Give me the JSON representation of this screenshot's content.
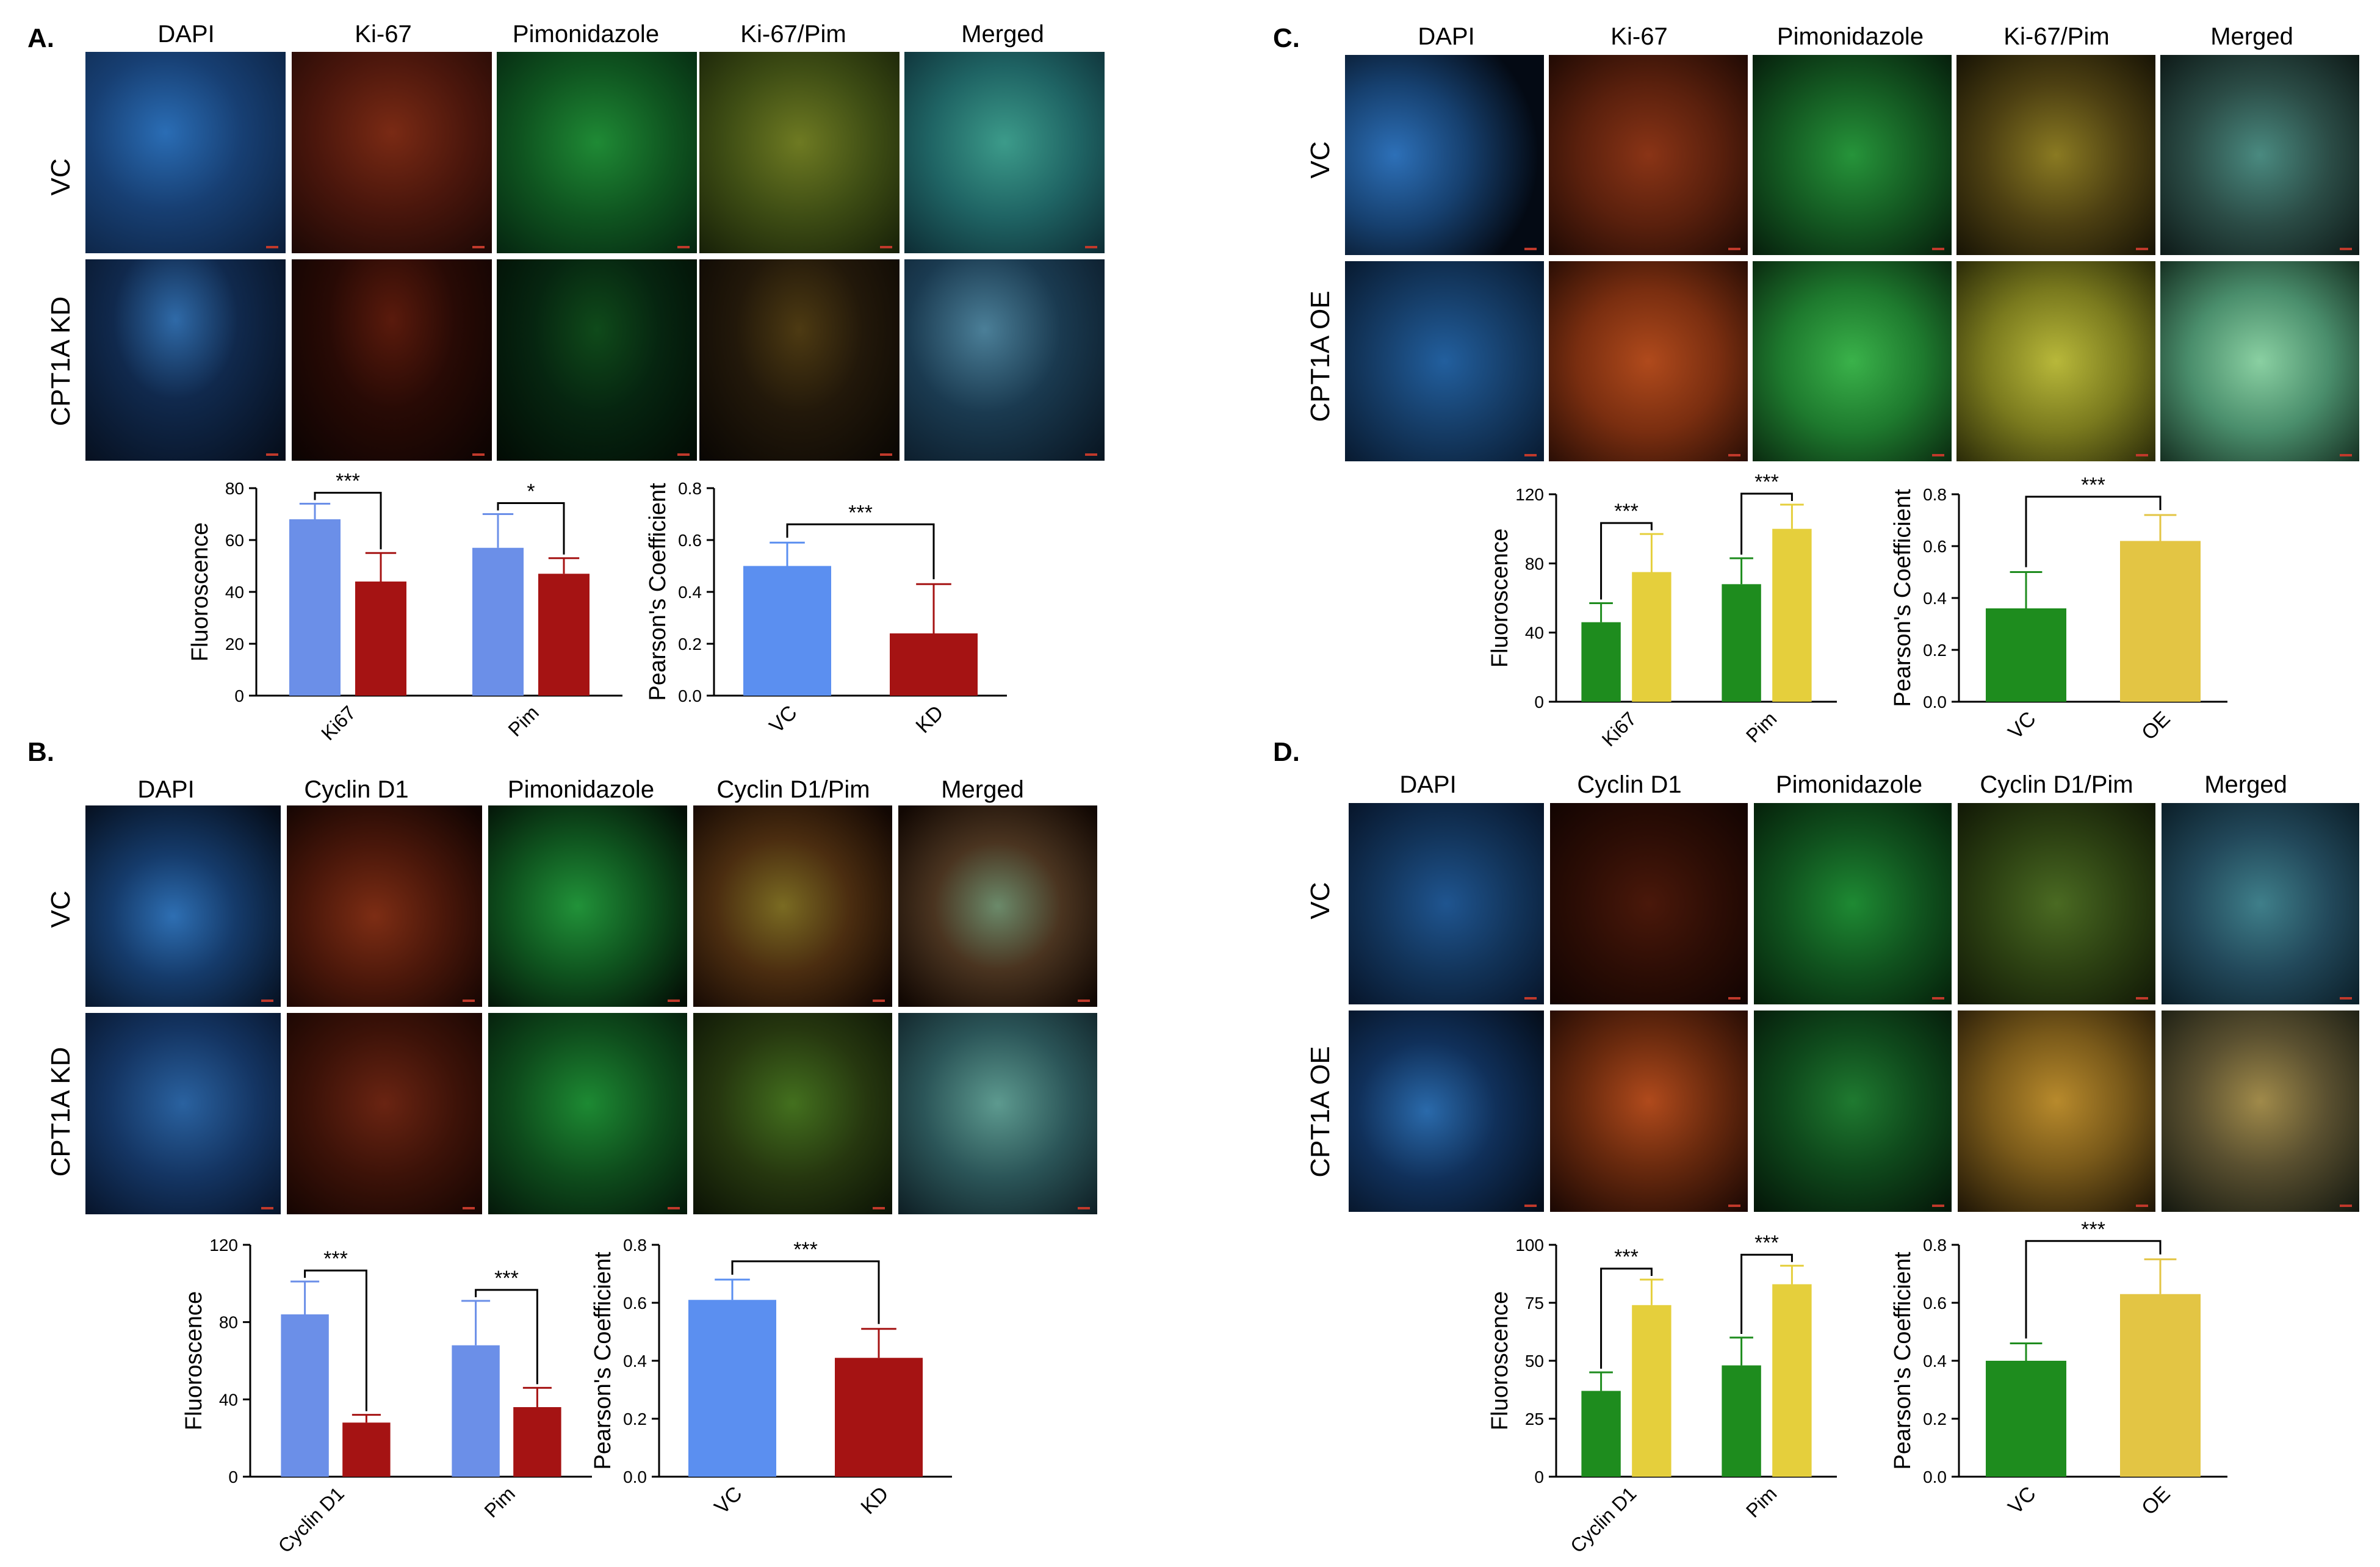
{
  "panels": {
    "A": {
      "letter": "A.",
      "columns": [
        "DAPI",
        "Ki-67",
        "Pimonidazole",
        "Ki-67/Pim",
        "Merged"
      ],
      "rows": [
        "VC",
        "CPT1A KD"
      ]
    },
    "B": {
      "letter": "B.",
      "columns": [
        "DAPI",
        "Cyclin D1",
        "Pimonidazole",
        "Cyclin D1/Pim",
        "Merged"
      ],
      "rows": [
        "VC",
        "CPT1A KD"
      ]
    },
    "C": {
      "letter": "C.",
      "columns": [
        "DAPI",
        "Ki-67",
        "Pimonidazole",
        "Ki-67/Pim",
        "Merged"
      ],
      "rows": [
        "VC",
        "CPT1A OE"
      ]
    },
    "D": {
      "letter": "D.",
      "columns": [
        "DAPI",
        "Cyclin D1",
        "Pimonidazole",
        "Cyclin D1/Pim",
        "Merged"
      ],
      "rows": [
        "VC",
        "CPT1A OE"
      ]
    }
  },
  "chart_data": [
    {
      "id": "A-fluor",
      "type": "bar",
      "ylabel": "Fluoroscence",
      "categories": [
        "Ki67",
        "Pim"
      ],
      "ylim": [
        0,
        80
      ],
      "yticks": [
        0,
        20,
        40,
        60,
        80
      ],
      "series": [
        {
          "values": [
            68,
            57
          ],
          "errors": [
            6,
            13
          ],
          "color": "#6b8fe8"
        },
        {
          "values": [
            44,
            47
          ],
          "errors": [
            11,
            6
          ],
          "color": "#a51313"
        }
      ],
      "significance": [
        "***",
        "*"
      ]
    },
    {
      "id": "A-pearson",
      "type": "bar",
      "ylabel": "Pearson's Coefficient",
      "categories": [
        "VC",
        "KD"
      ],
      "ylim": [
        0,
        0.8
      ],
      "yticks": [
        0.0,
        0.2,
        0.4,
        0.6,
        0.8
      ],
      "values": [
        0.5,
        0.24
      ],
      "errors": [
        0.09,
        0.19
      ],
      "colors": [
        "#5b8ff0",
        "#a51313"
      ],
      "significance": [
        "***"
      ]
    },
    {
      "id": "B-fluor",
      "type": "bar",
      "ylabel": "Fluoroscence",
      "categories": [
        "Cyclin D1",
        "Pim"
      ],
      "ylim": [
        0,
        120
      ],
      "yticks": [
        0,
        40,
        80,
        120
      ],
      "series": [
        {
          "values": [
            84,
            68
          ],
          "errors": [
            17,
            23
          ],
          "color": "#6b8fe8"
        },
        {
          "values": [
            28,
            36
          ],
          "errors": [
            4,
            10
          ],
          "color": "#a51313"
        }
      ],
      "significance": [
        "***",
        "***"
      ]
    },
    {
      "id": "B-pearson",
      "type": "bar",
      "ylabel": "Pearson's Coefficient",
      "categories": [
        "VC",
        "KD"
      ],
      "ylim": [
        0,
        0.8
      ],
      "yticks": [
        0.0,
        0.2,
        0.4,
        0.6,
        0.8
      ],
      "values": [
        0.61,
        0.41
      ],
      "errors": [
        0.07,
        0.1
      ],
      "colors": [
        "#5b8ff0",
        "#a51313"
      ],
      "significance": [
        "***"
      ]
    },
    {
      "id": "C-fluor",
      "type": "bar",
      "ylabel": "Fluoroscence",
      "categories": [
        "Ki67",
        "Pim"
      ],
      "ylim": [
        0,
        120
      ],
      "yticks": [
        0,
        40,
        80,
        120
      ],
      "series": [
        {
          "values": [
            46,
            68
          ],
          "errors": [
            11,
            15
          ],
          "color": "#1e8c1e"
        },
        {
          "values": [
            75,
            100
          ],
          "errors": [
            22,
            14
          ],
          "color": "#e5cf3c"
        }
      ],
      "significance": [
        "***",
        "***"
      ]
    },
    {
      "id": "C-pearson",
      "type": "bar",
      "ylabel": "Pearson's Coefficient",
      "categories": [
        "VC",
        "OE"
      ],
      "ylim": [
        0,
        0.8
      ],
      "yticks": [
        0.0,
        0.2,
        0.4,
        0.6,
        0.8
      ],
      "values": [
        0.36,
        0.62
      ],
      "errors": [
        0.14,
        0.1
      ],
      "colors": [
        "#1e8c1e",
        "#e3c544"
      ],
      "significance": [
        "***"
      ]
    },
    {
      "id": "D-fluor",
      "type": "bar",
      "ylabel": "Fluoroscence",
      "categories": [
        "Cyclin D1",
        "Pim"
      ],
      "ylim": [
        0,
        100
      ],
      "yticks": [
        0,
        25,
        50,
        75,
        100
      ],
      "series": [
        {
          "values": [
            37,
            48
          ],
          "errors": [
            8,
            12
          ],
          "color": "#1e8c1e"
        },
        {
          "values": [
            74,
            83
          ],
          "errors": [
            11,
            8
          ],
          "color": "#e5cf3c"
        }
      ],
      "significance": [
        "***",
        "***"
      ]
    },
    {
      "id": "D-pearson",
      "type": "bar",
      "ylabel": "Pearson's Coefficient",
      "categories": [
        "VC",
        "OE"
      ],
      "ylim": [
        0,
        0.8
      ],
      "yticks": [
        0.0,
        0.2,
        0.4,
        0.6,
        0.8
      ],
      "values": [
        0.4,
        0.63
      ],
      "errors": [
        0.06,
        0.12
      ],
      "colors": [
        "#1e8c1e",
        "#e3c544"
      ],
      "significance": [
        "***"
      ]
    }
  ]
}
